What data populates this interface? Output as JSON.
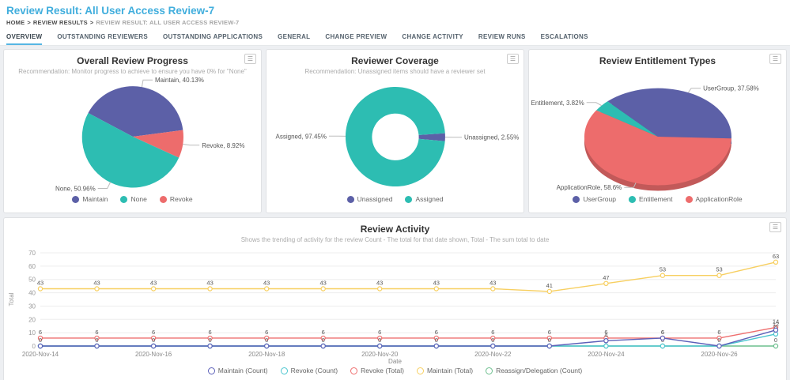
{
  "header": {
    "title": "Review Result: All User Access Review-7",
    "breadcrumb": {
      "separator": ">",
      "items": [
        {
          "label": "HOME",
          "current": false
        },
        {
          "label": "REVIEW RESULTS",
          "current": false
        },
        {
          "label": "REVIEW RESULT: ALL USER ACCESS REVIEW-7",
          "current": true
        }
      ]
    },
    "tabs": [
      {
        "label": "OVERVIEW",
        "active": true
      },
      {
        "label": "OUTSTANDING REVIEWERS",
        "active": false
      },
      {
        "label": "OUTSTANDING APPLICATIONS",
        "active": false
      },
      {
        "label": "GENERAL",
        "active": false
      },
      {
        "label": "CHANGE PREVIEW",
        "active": false
      },
      {
        "label": "CHANGE ACTIVITY",
        "active": false
      },
      {
        "label": "REVIEW RUNS",
        "active": false
      },
      {
        "label": "ESCALATIONS",
        "active": false
      }
    ]
  },
  "icons": {
    "card_menu": "☰"
  },
  "colors": {
    "accent": "#41aedd",
    "tab_underline": "#56b6e4"
  },
  "chart_data": [
    {
      "id": "overall-review-progress",
      "type": "pie",
      "title": "Overall Review Progress",
      "subtitle": "Recommendation: Monitor progress to achieve to ensure you have 0% for \"None\"",
      "start_angle": -62,
      "inner_ratio": 0,
      "y_scale": 1,
      "radius": 64,
      "depth": false,
      "slices": [
        {
          "label": "Maintain",
          "pct": "40.13",
          "value": 40.13,
          "color": "#5c60a7"
        },
        {
          "label": "Revoke",
          "pct": "8.92",
          "value": 8.92,
          "color": "#ed6c6c"
        },
        {
          "label": "None",
          "pct": "50.96",
          "value": 50.96,
          "color": "#2dbdb2"
        }
      ],
      "legend": [
        "Maintain",
        "None",
        "Revoke"
      ]
    },
    {
      "id": "reviewer-coverage",
      "type": "pie",
      "title": "Reviewer Coverage",
      "subtitle": "Recommendation: Unassigned items should have a reviewer set",
      "start_angle": 86,
      "inner_ratio": 0.47,
      "y_scale": 1,
      "radius": 63,
      "depth": false,
      "slices": [
        {
          "label": "Unassigned",
          "pct": "2.55",
          "value": 2.55,
          "color": "#5c60a7"
        },
        {
          "label": "Assigned",
          "pct": "97.45",
          "value": 97.45,
          "color": "#2dbdb2"
        }
      ],
      "legend": [
        "Unassigned",
        "Assigned"
      ]
    },
    {
      "id": "review-entitlement-types",
      "type": "pie",
      "title": "Review Entitlement Types",
      "subtitle": "",
      "start_angle": -57,
      "inner_ratio": 0,
      "y_scale": 0.66,
      "radius": 93,
      "depth": true,
      "slices": [
        {
          "label": "Entitlement",
          "pct": "3.82",
          "value": 3.82,
          "color": "#2dbdb2"
        },
        {
          "label": "UserGroup",
          "pct": "37.58",
          "value": 37.58,
          "color": "#5c60a7"
        },
        {
          "label": "ApplicationRole",
          "pct": "58.6",
          "value": 58.6,
          "color": "#ed6c6c"
        }
      ],
      "legend": [
        "UserGroup",
        "Entitlement",
        "ApplicationRole"
      ]
    },
    {
      "id": "review-activity",
      "type": "line",
      "title": "Review Activity",
      "subtitle": "Shows the trending of activity for the review Count - The total for that date shown, Total - The sum total to date",
      "xlabel": "Date",
      "ylabel": "Total",
      "ylim": [
        0,
        70
      ],
      "ytick_step": 10,
      "x": [
        "2020-Nov-14",
        "2020-Nov-15",
        "2020-Nov-16",
        "2020-Nov-17",
        "2020-Nov-18",
        "2020-Nov-19",
        "2020-Nov-20",
        "2020-Nov-21",
        "2020-Nov-22",
        "2020-Nov-23",
        "2020-Nov-24",
        "2020-Nov-25",
        "2020-Nov-26",
        "2020-Nov-27"
      ],
      "x_label_every": 2,
      "series": [
        {
          "name": "Maintain (Total)",
          "color": "#f7cf60",
          "label_mode": "all",
          "values": [
            43,
            43,
            43,
            43,
            43,
            43,
            43,
            43,
            43,
            41,
            47,
            53,
            53,
            63
          ]
        },
        {
          "name": "Revoke (Total)",
          "color": "#ee6e6e",
          "label_mode": "all",
          "values": [
            6,
            6,
            6,
            6,
            6,
            6,
            6,
            6,
            6,
            6,
            6,
            6,
            6,
            14
          ]
        },
        {
          "name": "Reassign/Delegation (Count)",
          "color": "#6cbf8e",
          "label_mode": "all",
          "values": [
            0,
            0,
            0,
            0,
            0,
            0,
            0,
            0,
            0,
            0,
            0,
            0,
            0,
            0
          ]
        },
        {
          "name": "Revoke (Count)",
          "color": "#4cc6cf",
          "label_mode": "nonzero",
          "values": [
            0,
            0,
            0,
            0,
            0,
            0,
            0,
            0,
            0,
            0,
            0,
            0,
            0,
            9
          ]
        },
        {
          "name": "Maintain (Count)",
          "color": "#5c60b9",
          "label_mode": "nonzero",
          "values": [
            0,
            0,
            0,
            0,
            0,
            0,
            0,
            0,
            0,
            0,
            4,
            6,
            0,
            12
          ]
        }
      ],
      "legend": [
        "Maintain (Count)",
        "Revoke (Count)",
        "Revoke (Total)",
        "Maintain (Total)",
        "Reassign/Delegation (Count)"
      ],
      "grid": true,
      "legend_position": "bottom"
    }
  ]
}
